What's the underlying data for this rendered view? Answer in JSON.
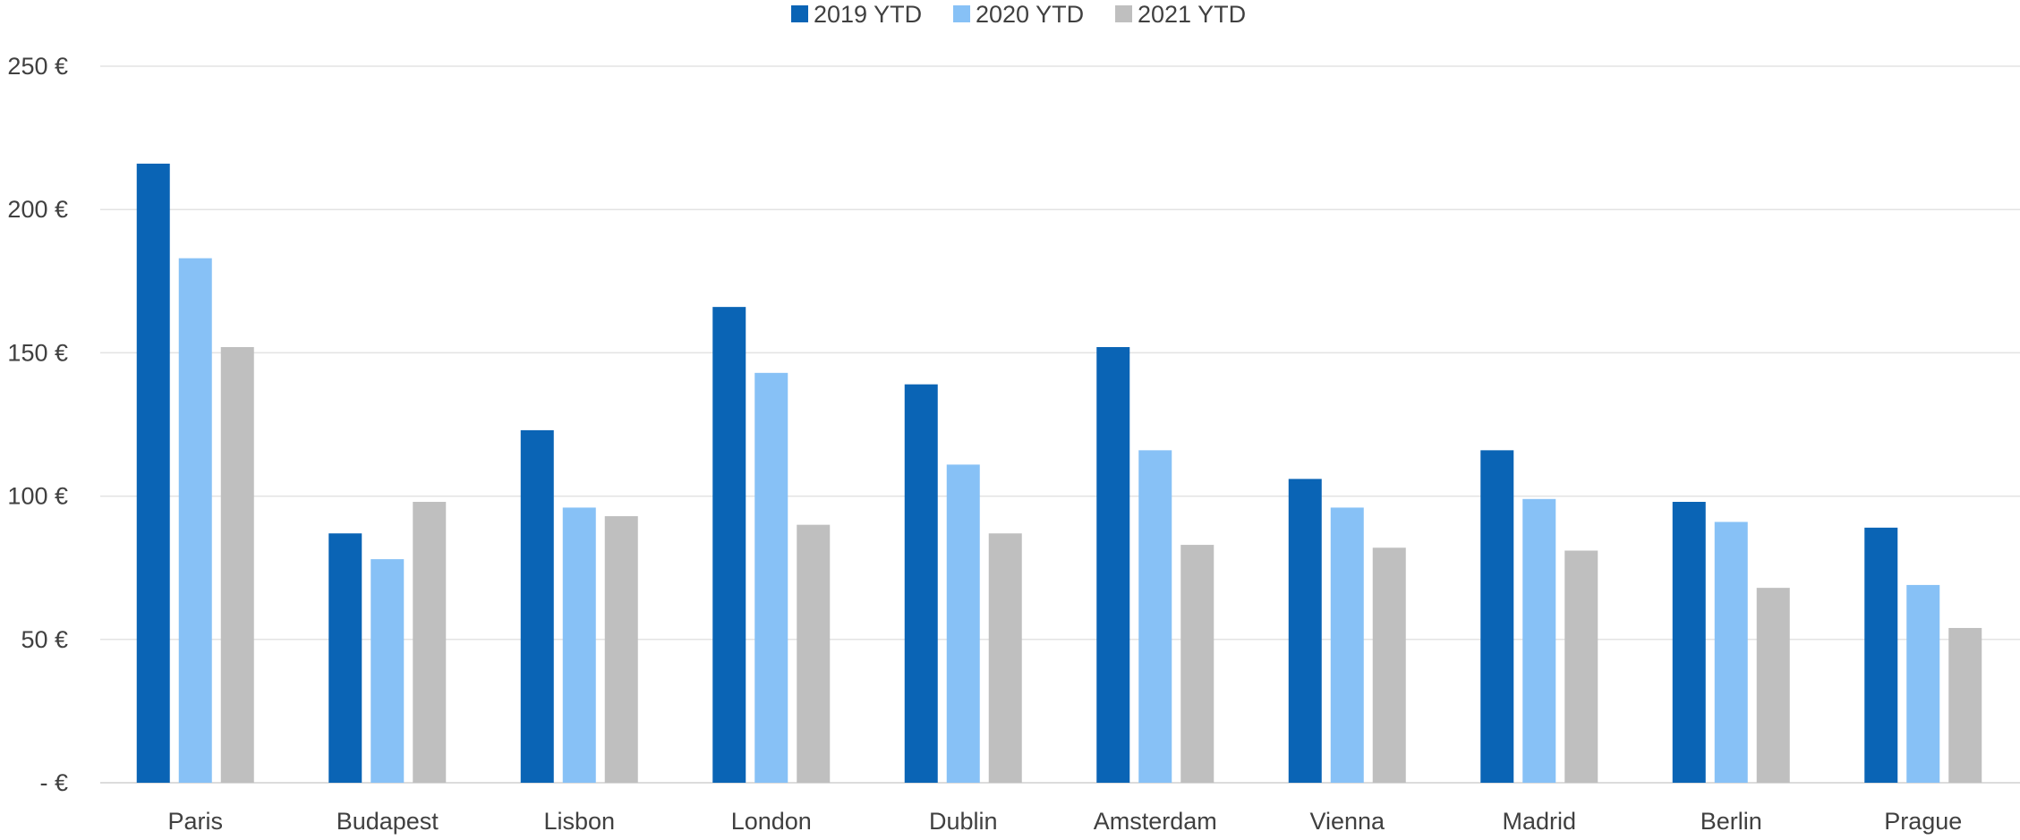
{
  "chart_data": {
    "type": "bar",
    "title": "",
    "xlabel": "",
    "ylabel": "",
    "categories": [
      "Paris",
      "Budapest",
      "Lisbon",
      "London",
      "Dublin",
      "Amsterdam",
      "Vienna",
      "Madrid",
      "Berlin",
      "Prague"
    ],
    "series": [
      {
        "name": "2019 YTD",
        "color": "#0A64B5",
        "values": [
          216,
          87,
          123,
          166,
          139,
          152,
          106,
          116,
          98,
          89
        ]
      },
      {
        "name": "2020 YTD",
        "color": "#87C1F6",
        "values": [
          183,
          78,
          96,
          143,
          111,
          116,
          96,
          99,
          91,
          69
        ]
      },
      {
        "name": "2021 YTD",
        "color": "#BFBFBF",
        "values": [
          152,
          98,
          93,
          90,
          87,
          83,
          82,
          81,
          68,
          54
        ]
      }
    ],
    "ylim": [
      0,
      250
    ],
    "yticks": [
      0,
      50,
      100,
      150,
      200,
      250
    ],
    "ytick_labels": [
      "- €",
      "50 €",
      "100 €",
      "150 €",
      "200 €",
      "250 €"
    ],
    "grid": true,
    "legend_position": "top-center"
  }
}
